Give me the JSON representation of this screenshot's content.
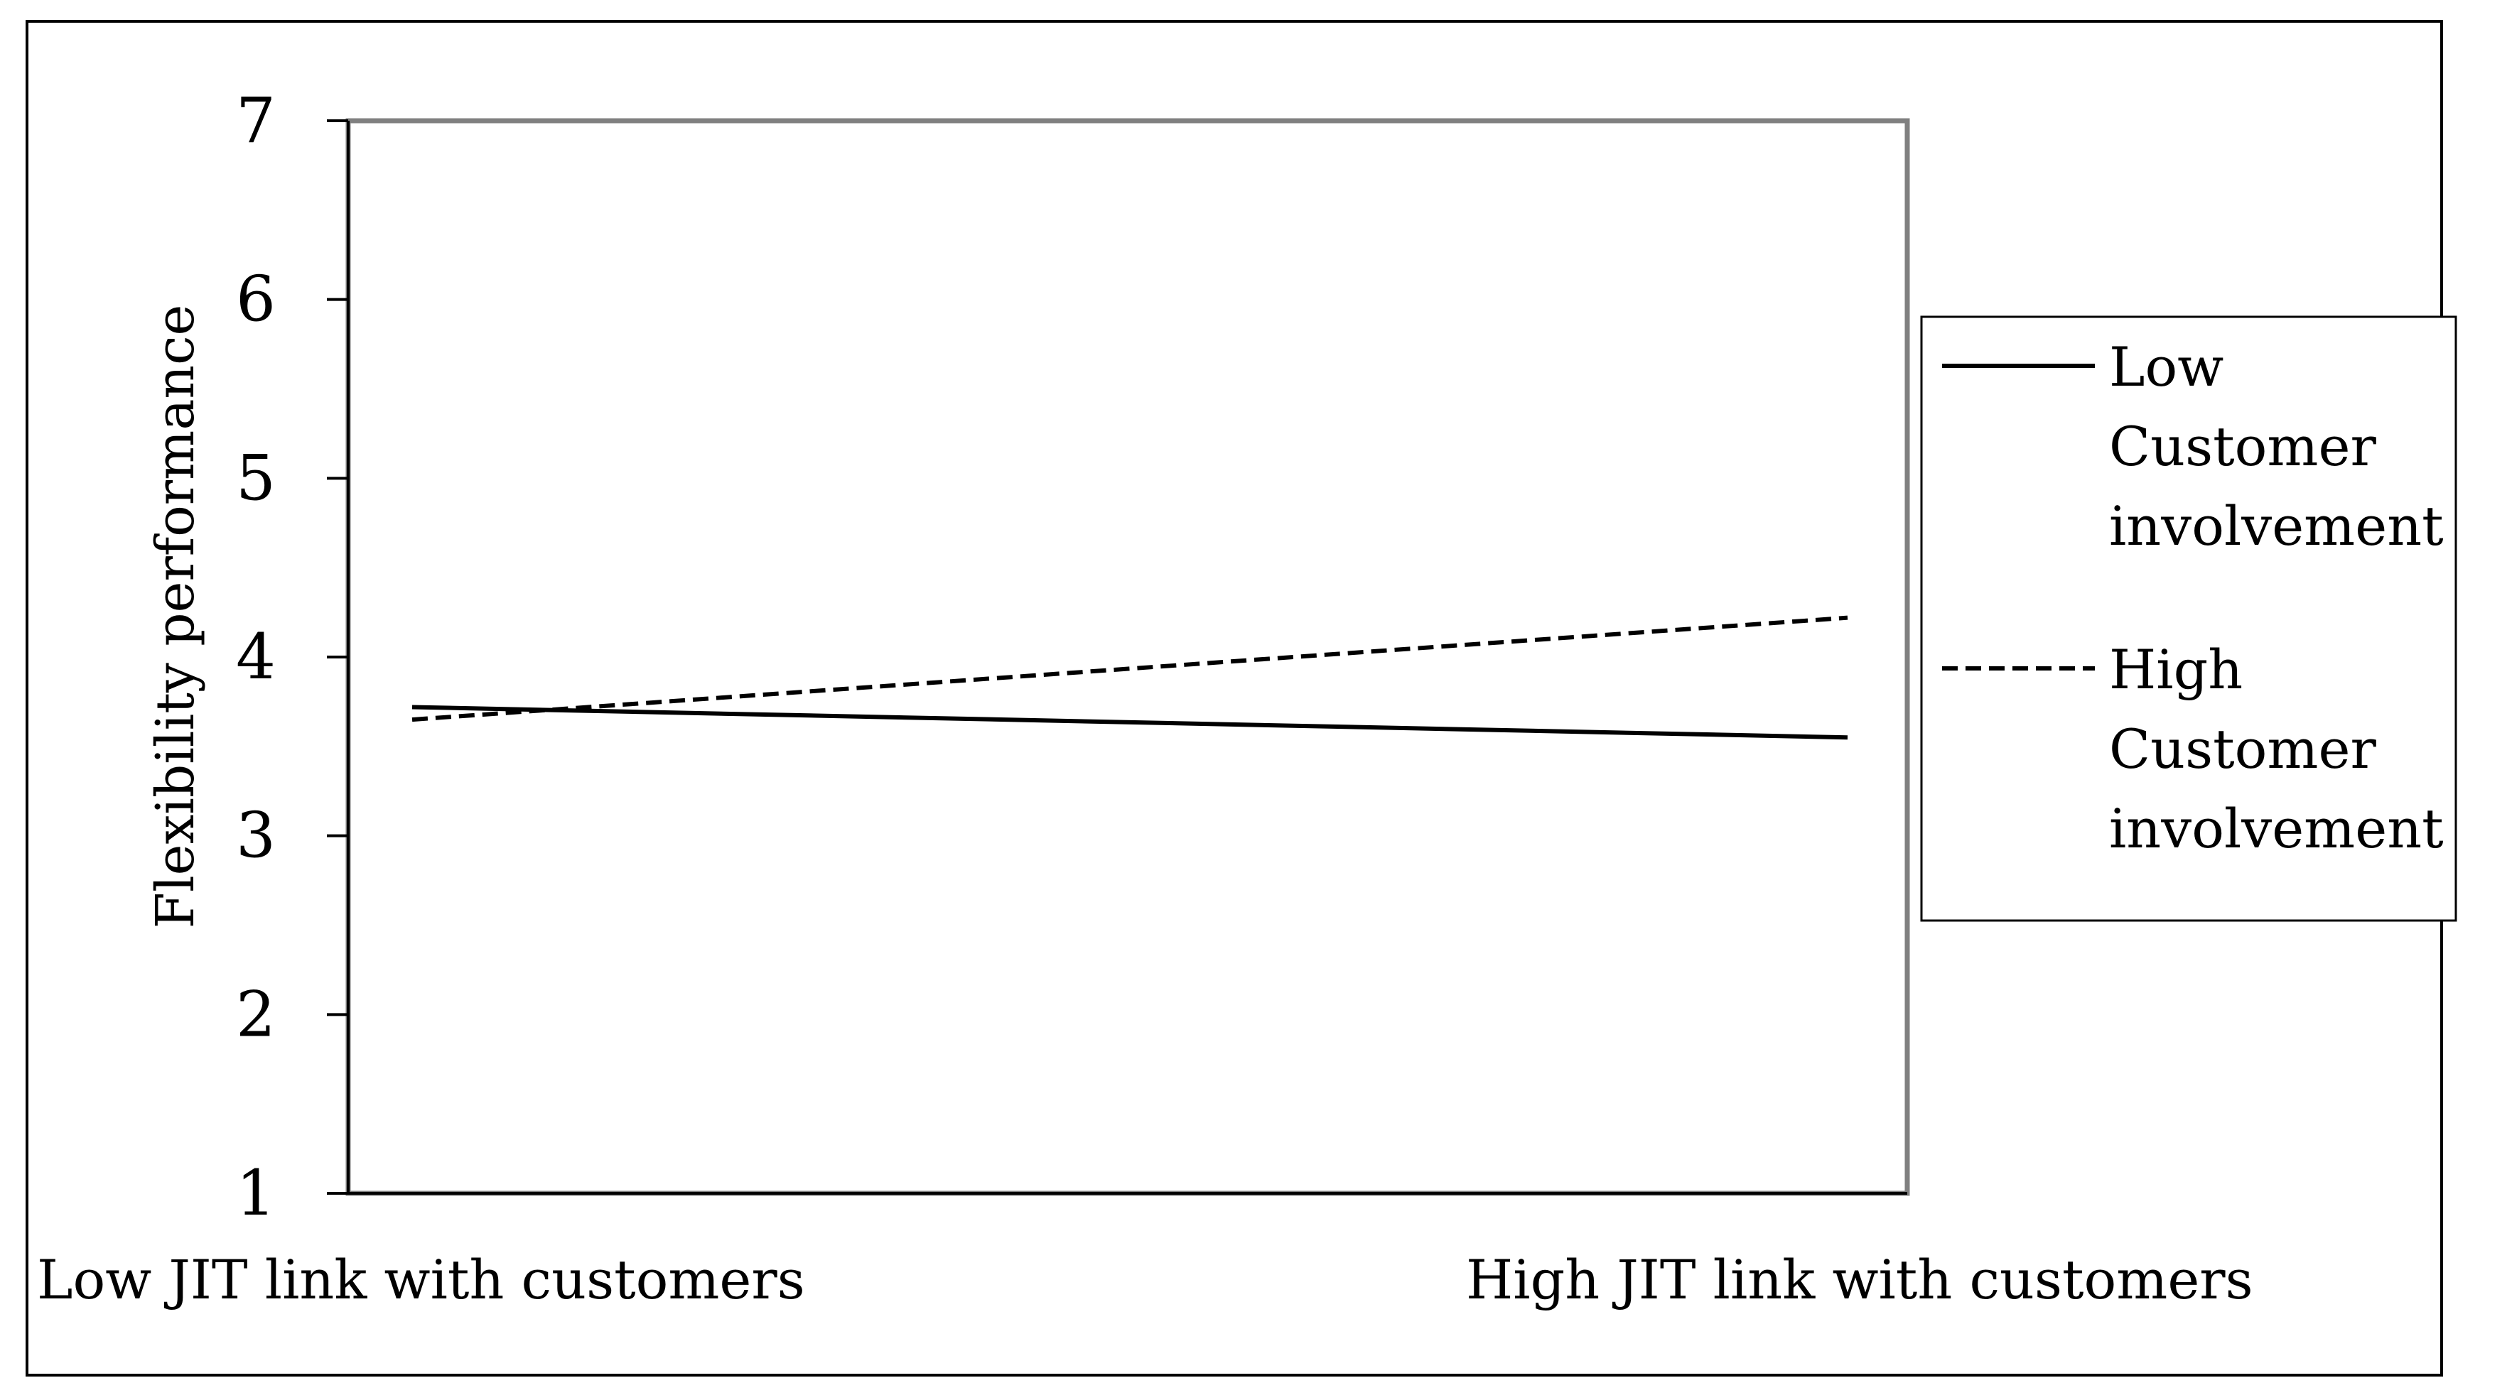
{
  "chart_data": {
    "type": "line",
    "title": "",
    "xlabel": "",
    "ylabel": "Flexibility performance",
    "categories": [
      "Low JIT link with customers",
      "High JIT link with customers"
    ],
    "y_ticks": [
      "1",
      "2",
      "3",
      "4",
      "5",
      "6",
      "7"
    ],
    "ylim": [
      1,
      7
    ],
    "grid": false,
    "legend_position": "right",
    "series": [
      {
        "name": [
          "Low",
          "Customer",
          "involvement"
        ],
        "style": "solid",
        "values": [
          3.72,
          3.55
        ]
      },
      {
        "name": [
          "High",
          "Customer",
          "involvement"
        ],
        "style": "dashed",
        "values": [
          3.65,
          4.22
        ]
      }
    ],
    "colors": {
      "line": "#000000",
      "plot_border": "#808080",
      "frame": "#000000",
      "background": "#ffffff"
    }
  }
}
